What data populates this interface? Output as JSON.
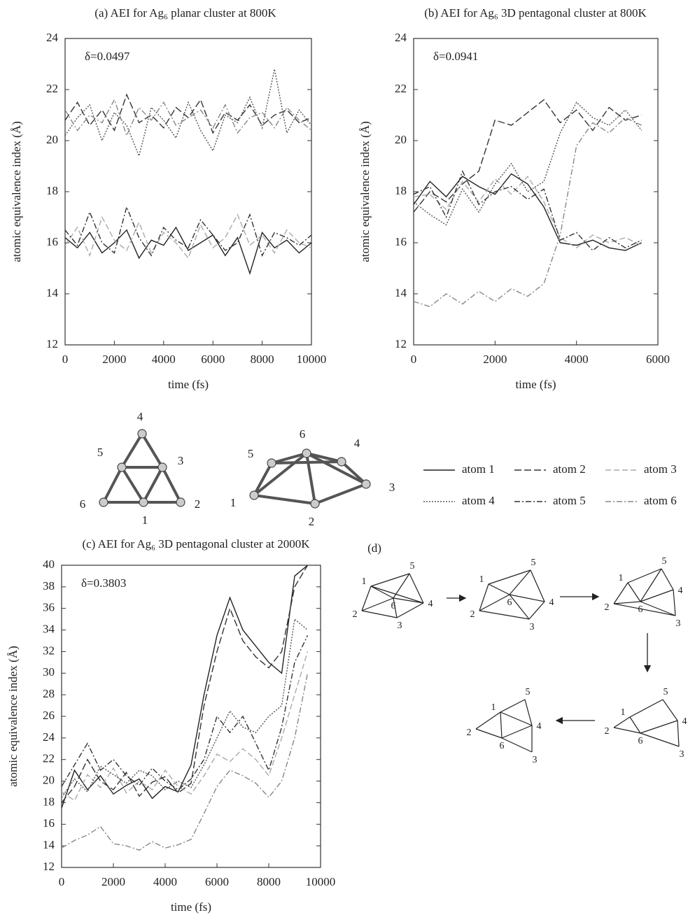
{
  "chart_data": [
    {
      "type": "line",
      "title": "(a) AEI for Ag₆ planar cluster at 800K",
      "annotation": "δ=0.0497",
      "xlabel": "time (fs)",
      "ylabel": "atomic equivalence index (Å)",
      "x": [
        0,
        500,
        1000,
        1500,
        2000,
        2500,
        3000,
        3500,
        4000,
        4500,
        5000,
        5500,
        6000,
        6500,
        7000,
        7500,
        8000,
        8500,
        9000,
        9500,
        10000
      ],
      "xlim": [
        0,
        10000
      ],
      "xticks": [
        0,
        2000,
        4000,
        6000,
        8000,
        10000
      ],
      "ylim": [
        12,
        24
      ],
      "yticks": [
        12,
        14,
        16,
        18,
        20,
        22,
        24
      ],
      "series": [
        {
          "name": "atom 1",
          "color": "#222222",
          "dash": "none",
          "values": [
            16.2,
            15.8,
            16.4,
            15.6,
            16.0,
            16.5,
            15.4,
            16.1,
            15.9,
            16.6,
            15.7,
            16.0,
            16.3,
            15.5,
            16.2,
            14.8,
            16.4,
            15.8,
            16.1,
            15.6,
            16.0
          ]
        },
        {
          "name": "atom 2",
          "color": "#333333",
          "dash": "10 4",
          "values": [
            20.8,
            21.5,
            20.6,
            21.2,
            20.4,
            21.8,
            20.7,
            21.0,
            20.5,
            21.3,
            20.9,
            21.6,
            20.3,
            21.1,
            20.8,
            21.4,
            20.6,
            21.0,
            21.2,
            20.7,
            20.9
          ]
        },
        {
          "name": "atom 3",
          "color": "#aaaaaa",
          "dash": "8 4",
          "values": [
            15.9,
            16.6,
            15.5,
            17.0,
            16.1,
            15.7,
            16.8,
            15.6,
            16.4,
            16.0,
            15.4,
            16.7,
            15.8,
            16.2,
            17.1,
            15.9,
            16.3,
            15.6,
            16.5,
            16.0,
            15.8
          ]
        },
        {
          "name": "atom 4",
          "color": "#555555",
          "dash": "2 2",
          "values": [
            20.2,
            20.9,
            21.4,
            20.0,
            21.1,
            20.6,
            19.4,
            21.3,
            20.8,
            20.1,
            21.5,
            20.4,
            19.6,
            21.0,
            20.7,
            21.7,
            20.5,
            22.8,
            20.3,
            21.2,
            20.6
          ]
        },
        {
          "name": "atom 5",
          "color": "#333333",
          "dash": "8 3 2 3",
          "values": [
            16.5,
            15.9,
            17.2,
            16.0,
            15.6,
            17.4,
            16.2,
            15.5,
            16.6,
            16.1,
            15.8,
            16.9,
            16.3,
            15.7,
            16.0,
            17.1,
            15.5,
            16.4,
            16.2,
            15.9,
            16.3
          ]
        },
        {
          "name": "atom 6",
          "color": "#888888",
          "dash": "8 3 2 3",
          "values": [
            21.2,
            20.4,
            21.0,
            20.7,
            21.6,
            20.2,
            21.3,
            20.8,
            21.5,
            20.6,
            20.9,
            21.2,
            20.5,
            21.4,
            20.3,
            20.9,
            21.1,
            20.5,
            21.3,
            20.8,
            20.4
          ]
        }
      ]
    },
    {
      "type": "line",
      "title": "(b) AEI for Ag₆ 3D pentagonal cluster at 800K",
      "annotation": "δ=0.0941",
      "xlabel": "time (fs)",
      "ylabel": "atomic equivalence index (Å)",
      "x": [
        0,
        400,
        800,
        1200,
        1600,
        2000,
        2400,
        2800,
        3200,
        3600,
        4000,
        4400,
        4800,
        5200,
        5600
      ],
      "xlim": [
        0,
        6000
      ],
      "xticks": [
        0,
        2000,
        4000,
        6000
      ],
      "ylim": [
        12,
        24
      ],
      "yticks": [
        12,
        14,
        16,
        18,
        20,
        22,
        24
      ],
      "series": [
        {
          "color": "#222222",
          "dash": "none",
          "values": [
            17.5,
            18.4,
            17.8,
            18.6,
            18.2,
            17.9,
            18.7,
            18.3,
            17.4,
            16.0,
            15.9,
            16.1,
            15.8,
            15.7,
            16.0
          ]
        },
        {
          "color": "#333333",
          "dash": "10 4",
          "values": [
            17.2,
            18.0,
            17.6,
            18.3,
            18.8,
            20.8,
            20.6,
            21.1,
            21.6,
            20.7,
            21.2,
            20.4,
            21.3,
            20.8,
            21.0
          ]
        },
        {
          "color": "#aaaaaa",
          "dash": "8 4",
          "values": [
            17.8,
            17.9,
            17.3,
            18.4,
            17.6,
            18.5,
            17.9,
            18.6,
            17.6,
            16.2,
            15.8,
            16.3,
            16.0,
            16.2,
            15.9
          ]
        },
        {
          "color": "#555555",
          "dash": "2 2",
          "values": [
            17.6,
            17.1,
            16.7,
            18.1,
            17.2,
            18.3,
            19.1,
            18.0,
            18.4,
            20.3,
            21.5,
            20.9,
            20.6,
            21.2,
            20.4
          ]
        },
        {
          "color": "#333333",
          "dash": "8 3 2 3",
          "values": [
            17.9,
            18.2,
            17.0,
            18.8,
            17.5,
            18.0,
            18.2,
            17.7,
            18.1,
            16.1,
            16.4,
            15.7,
            16.2,
            15.8,
            16.1
          ]
        },
        {
          "color": "#888888",
          "dash": "8 3 2 3",
          "values": [
            13.7,
            13.5,
            14.0,
            13.6,
            14.1,
            13.7,
            14.2,
            13.9,
            14.4,
            16.3,
            19.8,
            20.7,
            20.3,
            20.9,
            20.6
          ]
        }
      ]
    },
    {
      "type": "line",
      "title": "(c) AEI for Ag₆ 3D pentagonal cluster at 2000K",
      "annotation": "δ=0.3803",
      "xlabel": "time (fs)",
      "ylabel": "atomic equivalence index (Å)",
      "x": [
        0,
        500,
        1000,
        1500,
        2000,
        2500,
        3000,
        3500,
        4000,
        4500,
        5000,
        5500,
        6000,
        6500,
        7000,
        7500,
        8000,
        8500,
        9000,
        9500
      ],
      "xlim": [
        0,
        10000
      ],
      "xticks": [
        0,
        2000,
        4000,
        6000,
        8000,
        10000
      ],
      "ylim": [
        12,
        40
      ],
      "yticks": [
        12,
        14,
        16,
        18,
        20,
        22,
        24,
        26,
        28,
        30,
        32,
        34,
        36,
        38,
        40
      ],
      "series": [
        {
          "color": "#222222",
          "dash": "none",
          "values": [
            17.5,
            21.0,
            19.2,
            20.5,
            18.8,
            19.6,
            20.2,
            18.4,
            19.5,
            19.0,
            21.5,
            28.0,
            33.5,
            37.0,
            34.0,
            32.5,
            31.0,
            30.0,
            39.0,
            40.0
          ]
        },
        {
          "color": "#333333",
          "dash": "10 4",
          "values": [
            18.0,
            19.5,
            22.0,
            20.0,
            19.2,
            20.8,
            18.6,
            19.9,
            20.4,
            18.9,
            19.8,
            27.0,
            32.0,
            36.0,
            33.0,
            31.5,
            30.5,
            32.0,
            38.0,
            40.0
          ]
        },
        {
          "color": "#aaaaaa",
          "dash": "8 4",
          "values": [
            19.0,
            18.2,
            20.6,
            19.4,
            21.2,
            18.9,
            20.0,
            19.2,
            21.0,
            19.5,
            18.8,
            20.5,
            22.5,
            21.8,
            23.0,
            22.0,
            20.5,
            24.0,
            28.0,
            32.0
          ]
        },
        {
          "color": "#555555",
          "dash": "2 2",
          "values": [
            18.5,
            20.2,
            19.0,
            21.4,
            20.6,
            19.8,
            21.0,
            20.5,
            19.2,
            20.0,
            19.4,
            21.5,
            24.0,
            26.5,
            25.0,
            24.5,
            26.0,
            27.0,
            35.0,
            34.0
          ]
        },
        {
          "color": "#333333",
          "dash": "8 3 2 3",
          "values": [
            19.5,
            21.5,
            23.5,
            21.0,
            22.0,
            20.5,
            19.6,
            21.2,
            20.0,
            19.2,
            20.2,
            22.0,
            26.0,
            24.5,
            26.0,
            23.5,
            21.0,
            25.0,
            31.0,
            33.5
          ]
        },
        {
          "color": "#888888",
          "dash": "8 3 2 3",
          "values": [
            13.8,
            14.5,
            15.0,
            15.8,
            14.2,
            14.0,
            13.6,
            14.4,
            13.8,
            14.1,
            14.6,
            17.0,
            19.5,
            21.0,
            20.5,
            19.8,
            18.5,
            20.0,
            24.0,
            30.0
          ]
        }
      ]
    }
  ],
  "diagrams": {
    "planar": {
      "labels": [
        "1",
        "2",
        "3",
        "4",
        "5",
        "6"
      ]
    },
    "pentagonal": {
      "labels": [
        "1",
        "2",
        "3",
        "4",
        "5",
        "6"
      ]
    },
    "panel_d": {
      "label": "(d)",
      "graphs": [
        {
          "labels": [
            "1",
            "2",
            "3",
            "4",
            "5",
            "6"
          ]
        },
        {
          "labels": [
            "1",
            "2",
            "3",
            "4",
            "5",
            "6"
          ]
        },
        {
          "labels": [
            "1",
            "2",
            "3",
            "4",
            "5",
            "6"
          ]
        },
        {
          "labels": [
            "1",
            "2",
            "3",
            "4",
            "5",
            "6"
          ]
        },
        {
          "labels": [
            "1",
            "2",
            "3",
            "4",
            "5",
            "6"
          ]
        }
      ]
    }
  }
}
